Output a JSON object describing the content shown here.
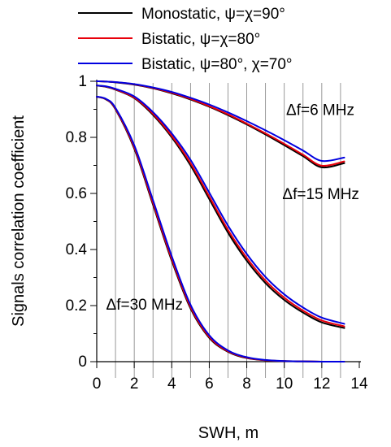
{
  "chart_data": {
    "type": "line",
    "xlabel": "SWH, m",
    "ylabel": "Signals correlation coefficient",
    "xlim": [
      0,
      14
    ],
    "ylim": [
      0,
      1
    ],
    "xticks": [
      "0",
      "2",
      "4",
      "6",
      "8",
      "10",
      "12",
      "14"
    ],
    "yticks": [
      "0",
      "0.2",
      "0.4",
      "0.6",
      "0.8",
      "1"
    ],
    "grid": "vertical minor lines",
    "legend_position": "top",
    "legend": [
      {
        "label": "Monostatic, ψ=χ=90°",
        "color": "#000000"
      },
      {
        "label": "Bistatic, ψ=χ=80°",
        "color": "#e8000b"
      },
      {
        "label": "Bistatic, ψ=80°, χ=70°",
        "color": "#0000e0"
      }
    ],
    "annotations": [
      {
        "text": "Δf=6 MHz",
        "x": 10.1,
        "y": 0.88
      },
      {
        "text": "Δf=15 MHz",
        "x": 9.9,
        "y": 0.58
      },
      {
        "text": "Δf=30 MHz",
        "x": 0.5,
        "y": 0.185
      }
    ],
    "x": [
      0,
      0.5,
      1,
      2,
      3,
      4,
      5,
      6,
      7,
      8,
      9,
      10,
      11,
      12,
      13.2
    ],
    "groups": [
      {
        "name": "Δf=6 MHz",
        "series": [
          {
            "label": "Monostatic, ψ=χ=90°",
            "color": "#000000",
            "values": [
              1.0,
              0.999,
              0.996,
              0.988,
              0.975,
              0.957,
              0.935,
              0.909,
              0.879,
              0.846,
              0.81,
              0.772,
              0.733,
              0.693,
              0.708
            ]
          },
          {
            "label": "Bistatic, ψ=χ=80°",
            "color": "#e8000b",
            "values": [
              1.0,
              0.999,
              0.997,
              0.989,
              0.976,
              0.959,
              0.937,
              0.911,
              0.882,
              0.849,
              0.814,
              0.777,
              0.738,
              0.699,
              0.714
            ]
          },
          {
            "label": "Bistatic, ψ=80°, χ=70°",
            "color": "#0000e0",
            "values": [
              1.0,
              0.999,
              0.997,
              0.99,
              0.978,
              0.962,
              0.941,
              0.917,
              0.889,
              0.858,
              0.825,
              0.79,
              0.753,
              0.716,
              0.728
            ]
          }
        ]
      },
      {
        "name": "Δf=15 MHz",
        "series": [
          {
            "label": "Monostatic, ψ=χ=90°",
            "color": "#000000",
            "values": [
              0.985,
              0.98,
              0.97,
              0.94,
              0.88,
              0.8,
              0.7,
              0.58,
              0.46,
              0.36,
              0.28,
              0.22,
              0.175,
              0.14,
              0.12
            ]
          },
          {
            "label": "Bistatic, ψ=χ=80°",
            "color": "#e8000b",
            "values": [
              0.985,
              0.981,
              0.971,
              0.942,
              0.884,
              0.805,
              0.708,
              0.589,
              0.47,
              0.37,
              0.289,
              0.228,
              0.182,
              0.147,
              0.126
            ]
          },
          {
            "label": "Bistatic, ψ=80°, χ=70°",
            "color": "#0000e0",
            "values": [
              0.985,
              0.982,
              0.973,
              0.946,
              0.89,
              0.814,
              0.72,
              0.603,
              0.485,
              0.384,
              0.302,
              0.24,
              0.193,
              0.157,
              0.135
            ]
          }
        ]
      },
      {
        "name": "Δf=30 MHz",
        "series": [
          {
            "label": "Monostatic, ψ=χ=90°",
            "color": "#000000",
            "values": [
              0.945,
              0.935,
              0.9,
              0.76,
              0.56,
              0.36,
              0.19,
              0.085,
              0.035,
              0.013,
              0.005,
              0.002,
              0.001,
              0.0,
              0.0
            ]
          },
          {
            "label": "Bistatic, ψ=χ=80°",
            "color": "#e8000b",
            "values": [
              0.945,
              0.936,
              0.902,
              0.765,
              0.566,
              0.366,
              0.195,
              0.088,
              0.037,
              0.014,
              0.005,
              0.002,
              0.001,
              0.0,
              0.0
            ]
          },
          {
            "label": "Bistatic, ψ=80°, χ=70°",
            "color": "#0000e0",
            "values": [
              0.945,
              0.937,
              0.905,
              0.772,
              0.576,
              0.376,
              0.203,
              0.094,
              0.04,
              0.016,
              0.006,
              0.002,
              0.001,
              0.0,
              0.0
            ]
          }
        ]
      }
    ]
  }
}
